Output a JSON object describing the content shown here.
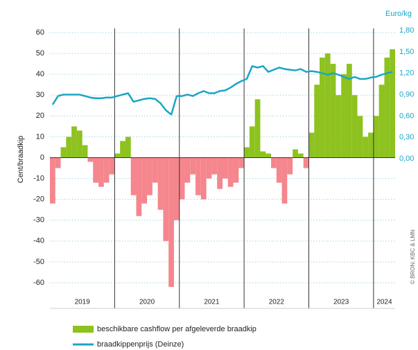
{
  "chart_data": {
    "type": "bar",
    "y_axis_label": "Cent/braadkip",
    "y2_axis_label": "Euro/kg",
    "source": "© BRON: KBC & LMN",
    "categories": [
      null,
      null,
      null,
      null,
      null,
      null,
      null,
      null,
      null,
      null,
      null,
      null,
      null,
      null,
      null,
      null,
      null,
      null,
      null,
      null,
      null,
      null,
      null,
      null,
      null,
      null,
      null,
      null,
      null,
      null,
      null,
      null,
      null,
      null,
      null,
      null,
      null,
      null,
      null,
      null,
      null,
      null,
      null,
      null,
      null,
      null,
      null,
      null,
      null,
      null,
      null,
      null,
      null,
      null,
      null,
      null,
      null,
      null,
      null,
      null,
      null,
      null,
      null,
      null
    ],
    "year_labels": [
      "2019",
      "2020",
      "2021",
      "2022",
      "2023",
      "2024"
    ],
    "series": [
      {
        "name": "beschikbare cashflow per afgeleverde braadkip",
        "type": "bar",
        "color": "#8dc21f",
        "negative_color": "#f5868e",
        "values": [
          -22,
          -5,
          5,
          10,
          15,
          13,
          6,
          -2,
          -12,
          -14,
          -12,
          -8,
          2,
          8,
          10,
          -18,
          -28,
          -22,
          -18,
          -12,
          -25,
          -40,
          -62,
          -30,
          -20,
          -12,
          -8,
          -18,
          -20,
          -10,
          -8,
          -15,
          -10,
          -14,
          -12,
          -5,
          5,
          15,
          28,
          3,
          2,
          -5,
          -12,
          -22,
          -8,
          4,
          2,
          -5,
          12,
          35,
          48,
          50,
          45,
          30,
          40,
          45,
          30,
          20,
          10,
          12,
          20,
          35,
          48,
          52
        ]
      },
      {
        "name": "braadkippenprijs (Deinze)",
        "type": "line",
        "axis": "y2",
        "color": "#1aa5c5",
        "values": [
          0.76,
          0.88,
          0.9,
          0.9,
          0.9,
          0.9,
          0.88,
          0.86,
          0.85,
          0.85,
          0.86,
          0.86,
          0.88,
          0.9,
          0.92,
          0.8,
          0.82,
          0.84,
          0.85,
          0.84,
          0.78,
          0.68,
          0.62,
          0.88,
          0.88,
          0.9,
          0.88,
          0.92,
          0.95,
          0.92,
          0.92,
          0.95,
          0.96,
          1.0,
          1.05,
          1.09,
          1.12,
          1.3,
          1.28,
          1.3,
          1.22,
          1.25,
          1.28,
          1.26,
          1.25,
          1.24,
          1.26,
          1.22,
          1.23,
          1.22,
          1.2,
          1.18,
          1.2,
          1.18,
          1.15,
          1.12,
          1.15,
          1.12,
          1.12,
          1.14,
          1.15,
          1.18,
          1.2,
          1.22
        ]
      }
    ],
    "ylim": [
      -63,
      62
    ],
    "yticks": [
      -60,
      -50,
      -40,
      -30,
      -20,
      -10,
      0,
      10,
      20,
      30,
      40,
      50,
      60
    ],
    "y2lim": [
      -1.83,
      1.83
    ],
    "y2ticks": [
      {
        "value": 0,
        "label": "0,00"
      },
      {
        "value": 0.3,
        "label": "0,30"
      },
      {
        "value": 0.6,
        "label": "0,60"
      },
      {
        "value": 0.9,
        "label": "0,90"
      },
      {
        "value": 1.2,
        "label": "1,20"
      },
      {
        "value": 1.5,
        "label": "1,50"
      },
      {
        "value": 1.8,
        "label": "1,80"
      }
    ],
    "grid": true
  }
}
